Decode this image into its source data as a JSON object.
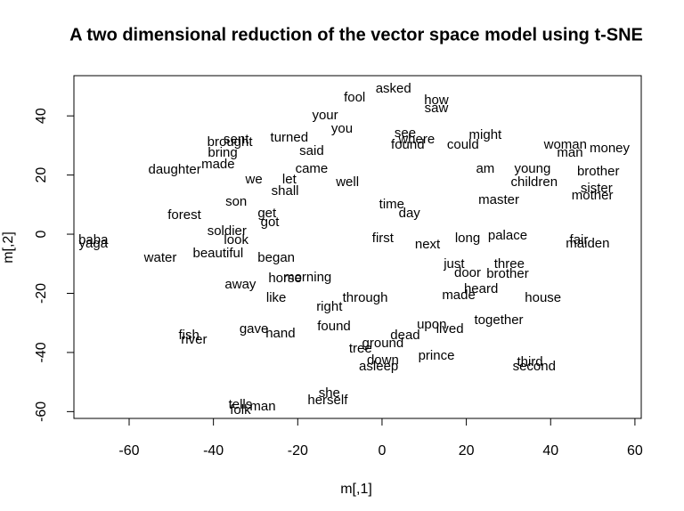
{
  "chart_data": {
    "type": "text-scatter",
    "title": "A two dimensional reduction of the vector space model using t-SNE",
    "xlabel": "m[,1]",
    "ylabel": "m[,2]",
    "xlim": [
      -73.1,
      61.5
    ],
    "ylim": [
      -62.3,
      53.6
    ],
    "xticks": [
      -60,
      -40,
      -20,
      0,
      20,
      40,
      60
    ],
    "yticks": [
      -60,
      -40,
      -20,
      0,
      20,
      40
    ],
    "color": "#000000",
    "labels": [
      "asked",
      "fool",
      "how",
      "saw",
      "your",
      "you",
      "sent",
      "brought",
      "bring",
      "turned",
      "see",
      "where",
      "might",
      "could",
      "found",
      "woman",
      "money",
      "man",
      "brother",
      "daughter",
      "made",
      "young",
      "am",
      "children",
      "sister",
      "mother",
      "son",
      "we",
      "let",
      "master",
      "forest",
      "get",
      "got",
      "soldier",
      "look",
      "baba",
      "yaga",
      "water",
      "beautiful",
      "palace",
      "long",
      "fair",
      "maiden",
      "three",
      "brother",
      "door",
      "just",
      "began",
      "horse",
      "away",
      "morning",
      "heard",
      "made",
      "house",
      "together",
      "gave",
      "hand",
      "found",
      "upon",
      "lived",
      "dead",
      "fish",
      "river",
      "tree",
      "ground",
      "prince",
      "down",
      "asleep",
      "third",
      "second",
      "she",
      "herself",
      "man",
      "tells",
      "folk",
      "through",
      "right",
      "like",
      "said",
      "next",
      "first",
      "well",
      "came",
      "shall",
      "time",
      "day"
    ],
    "x": [
      2.7,
      -6.5,
      12.9,
      12.9,
      -13.5,
      -9.5,
      -34.6,
      -36.1,
      -37.8,
      -22,
      5.5,
      8.2,
      24.5,
      19.2,
      6.1,
      43.5,
      54,
      44.6,
      51.3,
      -49.2,
      -38.9,
      35.7,
      24.5,
      36.1,
      50.9,
      49.9,
      -34.6,
      -30.4,
      -22,
      27.7,
      -46.9,
      -27.3,
      -26.6,
      -36.8,
      -34.6,
      -68.5,
      -68.5,
      -52.6,
      -38.9,
      29.8,
      20.3,
      46.7,
      48.8,
      30.2,
      29.8,
      20.3,
      17.1,
      -25.1,
      -23,
      -33.6,
      -17.7,
      23.5,
      18.2,
      38.2,
      27.7,
      -30.4,
      -24.1,
      -11.4,
      11.8,
      16.1,
      5.5,
      -45.8,
      -44.6,
      -5.1,
      0.2,
      12.9,
      0.2,
      -0.8,
      35.1,
      36.1,
      -12.5,
      -12.9,
      -28.3,
      -33.6,
      -33.6,
      -4,
      -12.5,
      -25.1,
      -16.7,
      10.8,
      0.2,
      -8.2,
      -16.7,
      -23,
      2.3,
      6.5
    ],
    "values": [
      49.1,
      46,
      45.2,
      42.5,
      40,
      35.5,
      31.9,
      31,
      27.4,
      32.5,
      34,
      31.9,
      33.4,
      30.1,
      30.1,
      30.1,
      28.9,
      27.4,
      21.1,
      21.7,
      23.5,
      22,
      22,
      17.5,
      15.4,
      13,
      10.8,
      18.4,
      18.4,
      11.4,
      6.3,
      6.9,
      3.9,
      0.9,
      -2.1,
      -2.1,
      -3.3,
      -8.1,
      -6.6,
      -0.6,
      -1.5,
      -2.1,
      -3.3,
      -10.2,
      -13.6,
      -13.3,
      -10.2,
      -8.1,
      -15.1,
      -17.2,
      -14.8,
      -18.7,
      -20.8,
      -21.7,
      -29.2,
      -32.2,
      -33.7,
      -31.3,
      -30.7,
      -32.2,
      -34.3,
      -34.3,
      -35.8,
      -38.9,
      -37,
      -41.3,
      -42.8,
      -44.9,
      -43.4,
      -44.9,
      -53.9,
      -56.3,
      -58.4,
      -57.8,
      -59.6,
      -21.7,
      -24.7,
      -21.7,
      28,
      -3.6,
      -1.5,
      17.5,
      22,
      14.5,
      9.9,
      6.9
    ]
  }
}
